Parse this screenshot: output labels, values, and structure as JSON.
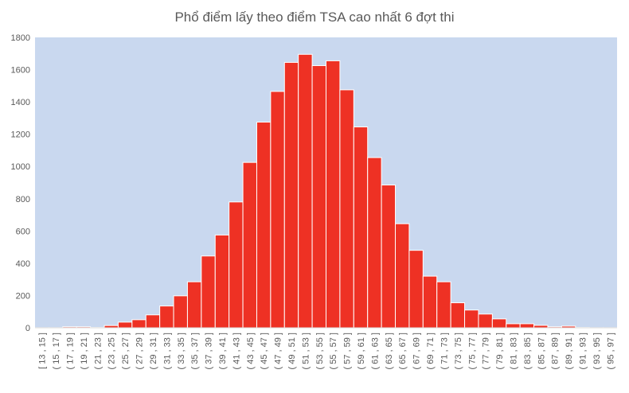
{
  "chart_data": {
    "type": "bar",
    "title": "Phổ điểm lấy theo điểm TSA cao nhất 6 đợt thi",
    "xlabel": "",
    "ylabel": "",
    "ylim": [
      0,
      1800
    ],
    "yticks": [
      0,
      200,
      400,
      600,
      800,
      1000,
      1200,
      1400,
      1600,
      1800
    ],
    "grid": false,
    "legend": "none",
    "categories": [
      "[ 13 , 15 ]",
      "( 15 , 17 ]",
      "( 17 , 19 ]",
      "( 19 , 21 ]",
      "( 21 , 23 ]",
      "( 23 , 25 ]",
      "( 25 , 27 ]",
      "( 27 , 29 ]",
      "( 29 , 31 ]",
      "( 31 , 33 ]",
      "( 33 , 35 ]",
      "( 35 , 37 ]",
      "( 37 , 39 ]",
      "( 39 , 41 ]",
      "( 41 , 43 ]",
      "( 43 , 45 ]",
      "( 45 , 47 ]",
      "( 47 , 49 ]",
      "( 49 , 51 ]",
      "( 51 , 53 ]",
      "( 53 , 55 ]",
      "( 55 , 57 ]",
      "( 57 , 59 ]",
      "( 59 , 61 ]",
      "( 61 , 63 ]",
      "( 63 , 65 ]",
      "( 65 , 67 ]",
      "( 67 , 69 ]",
      "( 69 , 71 ]",
      "( 71 , 73 ]",
      "( 73 , 75 ]",
      "( 75 , 77 ]",
      "( 77 , 79 ]",
      "( 79 , 81 ]",
      "( 81 , 83 ]",
      "( 83 , 85 ]",
      "( 85 , 87 ]",
      "( 87 , 89 ]",
      "( 89 , 91 ]",
      "( 91 , 93 ]",
      "( 93 , 95 ]",
      "( 95 , 97 ]"
    ],
    "values": [
      1,
      1,
      6,
      6,
      2,
      14,
      35,
      50,
      80,
      135,
      198,
      285,
      445,
      575,
      780,
      1025,
      1275,
      1465,
      1645,
      1695,
      1625,
      1655,
      1475,
      1245,
      1055,
      885,
      645,
      480,
      320,
      285,
      155,
      110,
      85,
      55,
      25,
      25,
      15,
      6,
      10,
      2,
      1,
      1
    ],
    "colors": {
      "bar_fill": "#ee3124",
      "bar_stroke": "#ffffff",
      "plot_background": "#c9d8ef",
      "tick_label": "#595959",
      "axis_line": "#d9d9d9"
    }
  }
}
